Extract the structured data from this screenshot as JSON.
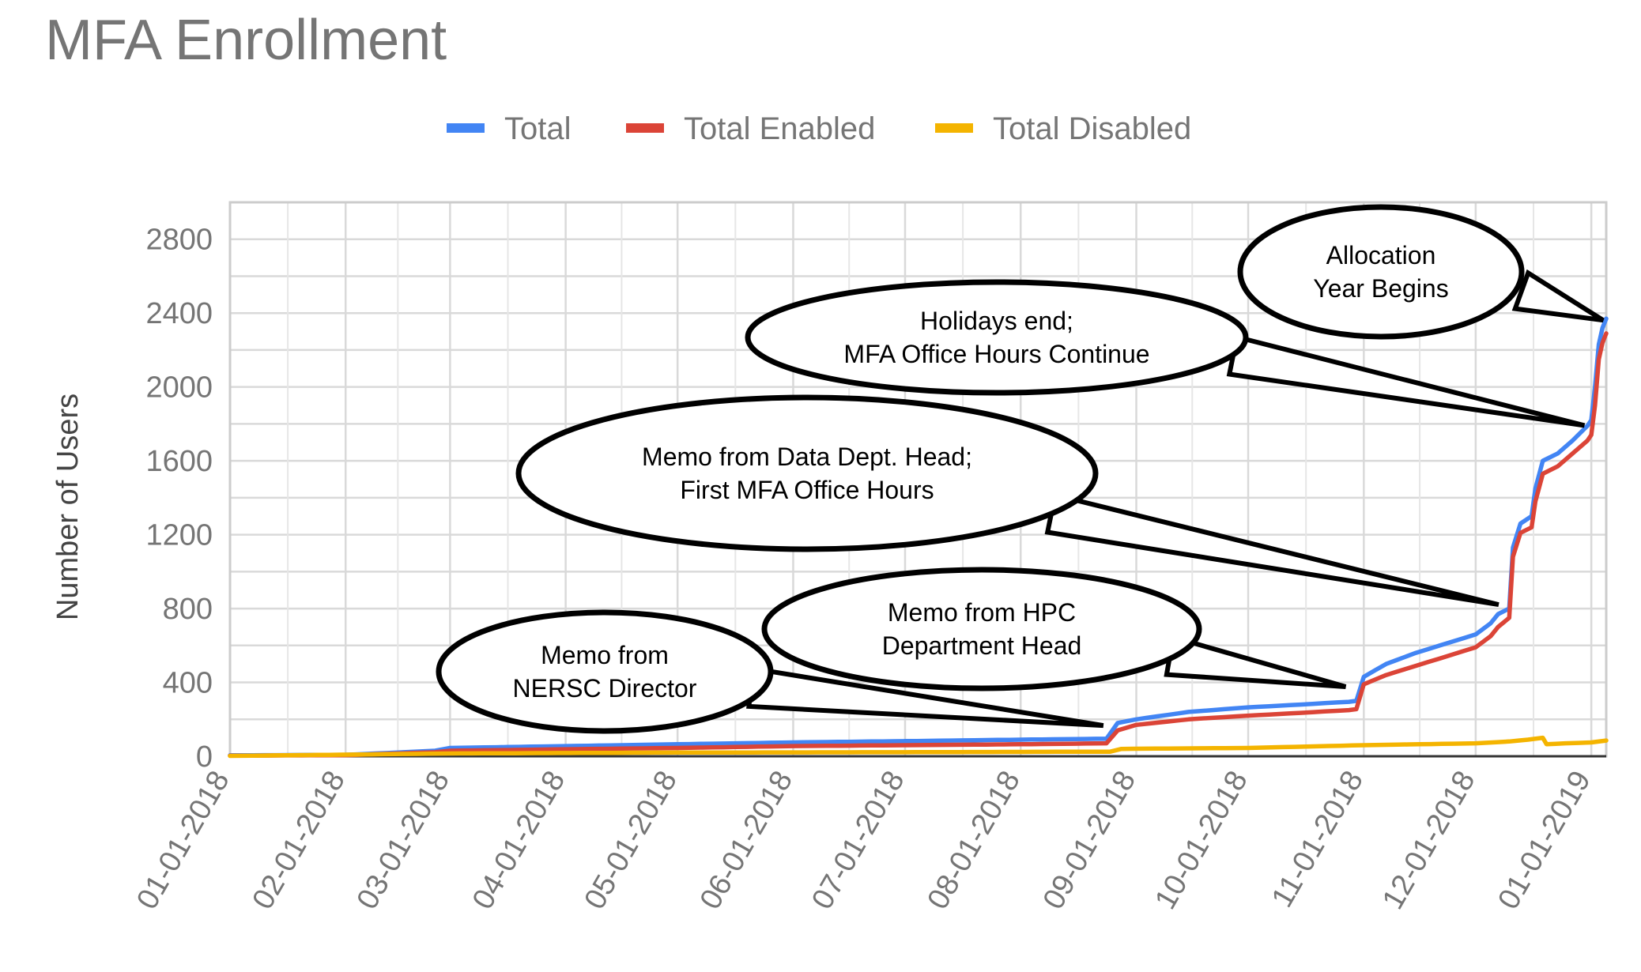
{
  "chart_data": {
    "type": "line",
    "title": "MFA Enrollment",
    "xlabel": "",
    "ylabel": "Number of Users",
    "ylim": [
      0,
      3000
    ],
    "y_ticks": [
      "0",
      "400",
      "800",
      "1200",
      "1600",
      "2000",
      "2400",
      "2800"
    ],
    "x_ticks": [
      "01-01-2018",
      "02-01-2018",
      "03-01-2018",
      "04-01-2018",
      "05-01-2018",
      "06-01-2018",
      "07-01-2018",
      "08-01-2018",
      "09-01-2018",
      "10-01-2018",
      "11-01-2018",
      "12-01-2018",
      "01-01-2019"
    ],
    "xlim": [
      "2018-01-01",
      "2019-01-05"
    ],
    "grid": true,
    "legend_position": "top",
    "series": [
      {
        "name": "Total",
        "color": "#4285F4",
        "points": [
          [
            "2018-01-01",
            5
          ],
          [
            "2018-02-01",
            8
          ],
          [
            "2018-02-15",
            20
          ],
          [
            "2018-02-25",
            30
          ],
          [
            "2018-03-01",
            45
          ],
          [
            "2018-04-01",
            55
          ],
          [
            "2018-05-01",
            65
          ],
          [
            "2018-06-01",
            75
          ],
          [
            "2018-07-01",
            82
          ],
          [
            "2018-08-01",
            90
          ],
          [
            "2018-08-24",
            95
          ],
          [
            "2018-08-27",
            180
          ],
          [
            "2018-09-01",
            200
          ],
          [
            "2018-09-15",
            240
          ],
          [
            "2018-10-01",
            265
          ],
          [
            "2018-10-15",
            280
          ],
          [
            "2018-10-28",
            295
          ],
          [
            "2018-10-30",
            300
          ],
          [
            "2018-11-01",
            430
          ],
          [
            "2018-11-07",
            500
          ],
          [
            "2018-11-15",
            560
          ],
          [
            "2018-12-01",
            660
          ],
          [
            "2018-12-05",
            720
          ],
          [
            "2018-12-07",
            770
          ],
          [
            "2018-12-10",
            800
          ],
          [
            "2018-12-11",
            1130
          ],
          [
            "2018-12-13",
            1260
          ],
          [
            "2018-12-16",
            1300
          ],
          [
            "2018-12-17",
            1450
          ],
          [
            "2018-12-19",
            1600
          ],
          [
            "2018-12-23",
            1640
          ],
          [
            "2018-12-27",
            1710
          ],
          [
            "2018-12-31",
            1790
          ],
          [
            "2019-01-01",
            1820
          ],
          [
            "2019-01-02",
            2000
          ],
          [
            "2019-01-03",
            2230
          ],
          [
            "2019-01-04",
            2320
          ],
          [
            "2019-01-05",
            2370
          ]
        ]
      },
      {
        "name": "Total Enabled",
        "color": "#DB4437",
        "points": [
          [
            "2018-01-01",
            3
          ],
          [
            "2018-02-01",
            6
          ],
          [
            "2018-02-15",
            15
          ],
          [
            "2018-02-25",
            22
          ],
          [
            "2018-03-01",
            30
          ],
          [
            "2018-04-01",
            38
          ],
          [
            "2018-05-01",
            45
          ],
          [
            "2018-06-01",
            55
          ],
          [
            "2018-07-01",
            60
          ],
          [
            "2018-08-01",
            65
          ],
          [
            "2018-08-24",
            70
          ],
          [
            "2018-08-27",
            140
          ],
          [
            "2018-09-01",
            170
          ],
          [
            "2018-09-15",
            200
          ],
          [
            "2018-10-01",
            220
          ],
          [
            "2018-10-15",
            235
          ],
          [
            "2018-10-28",
            250
          ],
          [
            "2018-10-30",
            255
          ],
          [
            "2018-11-01",
            390
          ],
          [
            "2018-11-07",
            440
          ],
          [
            "2018-11-15",
            490
          ],
          [
            "2018-12-01",
            590
          ],
          [
            "2018-12-05",
            650
          ],
          [
            "2018-12-07",
            700
          ],
          [
            "2018-12-10",
            750
          ],
          [
            "2018-12-11",
            1080
          ],
          [
            "2018-12-13",
            1210
          ],
          [
            "2018-12-16",
            1240
          ],
          [
            "2018-12-17",
            1380
          ],
          [
            "2018-12-19",
            1530
          ],
          [
            "2018-12-23",
            1570
          ],
          [
            "2018-12-27",
            1640
          ],
          [
            "2018-12-31",
            1710
          ],
          [
            "2019-01-01",
            1740
          ],
          [
            "2019-01-02",
            1900
          ],
          [
            "2019-01-03",
            2150
          ],
          [
            "2019-01-04",
            2240
          ],
          [
            "2019-01-05",
            2290
          ]
        ]
      },
      {
        "name": "Total Disabled",
        "color": "#F4B400",
        "points": [
          [
            "2018-01-01",
            2
          ],
          [
            "2018-03-01",
            15
          ],
          [
            "2018-05-01",
            20
          ],
          [
            "2018-07-01",
            22
          ],
          [
            "2018-08-25",
            25
          ],
          [
            "2018-08-28",
            40
          ],
          [
            "2018-10-01",
            45
          ],
          [
            "2018-11-01",
            60
          ],
          [
            "2018-12-01",
            70
          ],
          [
            "2018-12-10",
            80
          ],
          [
            "2018-12-15",
            90
          ],
          [
            "2018-12-19",
            100
          ],
          [
            "2018-12-20",
            65
          ],
          [
            "2018-12-25",
            70
          ],
          [
            "2019-01-01",
            75
          ],
          [
            "2019-01-05",
            85
          ]
        ]
      }
    ],
    "annotations": [
      {
        "lines": [
          "Allocation",
          "Year Begins"
        ],
        "target": [
          "2019-01-05",
          2370
        ]
      },
      {
        "lines": [
          "Holidays end;",
          "MFA Office Hours Continue"
        ],
        "target": [
          "2018-12-31",
          1800
        ]
      },
      {
        "lines": [
          "Memo from Data Dept. Head;",
          "First MFA Office Hours"
        ],
        "target": [
          "2018-12-08",
          830
        ]
      },
      {
        "lines": [
          "Memo from HPC",
          "Department Head"
        ],
        "target": [
          "2018-10-28",
          385
        ]
      },
      {
        "lines": [
          "Memo from",
          "NERSC Director"
        ],
        "target": [
          "2018-08-24",
          175
        ]
      }
    ]
  }
}
